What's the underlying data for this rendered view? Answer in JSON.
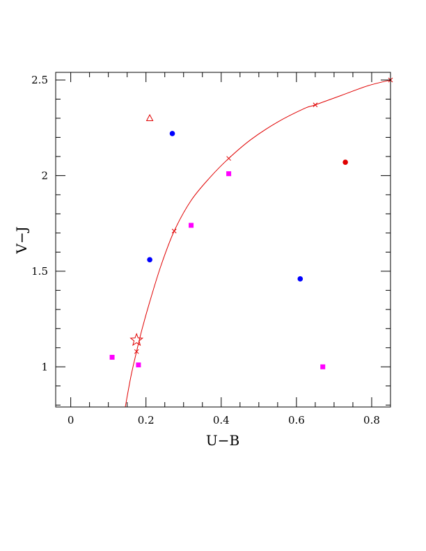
{
  "chart_data": {
    "type": "scatter",
    "title": "",
    "xlabel": "U−B",
    "ylabel": "V−J",
    "xlim": [
      -0.04,
      0.85
    ],
    "ylim": [
      0.79,
      2.54
    ],
    "x_ticks": [
      "0",
      "0.2",
      "0.4",
      "0.6",
      "0.8"
    ],
    "y_ticks": [
      "1",
      "1.5",
      "2",
      "2.5"
    ],
    "grid": false,
    "legend": "none",
    "colors": {
      "red": "#e00000",
      "blue": "#0000ff",
      "magenta": "#ff00ff"
    },
    "curve": {
      "color": "#e00000",
      "x": [
        0.145,
        0.16,
        0.175,
        0.19,
        0.21,
        0.24,
        0.275,
        0.32,
        0.37,
        0.42,
        0.48,
        0.55,
        0.62,
        0.65,
        0.72,
        0.79,
        0.85
      ],
      "y": [
        0.79,
        0.95,
        1.08,
        1.2,
        1.34,
        1.53,
        1.71,
        1.87,
        1.99,
        2.09,
        2.19,
        2.28,
        2.35,
        2.37,
        2.42,
        2.47,
        2.5
      ],
      "markers_x": [
        0.175,
        0.275,
        0.42,
        0.65,
        0.85
      ]
    },
    "series": [
      {
        "marker": "square",
        "color": "#ff00ff",
        "x": [
          0.11,
          0.18,
          0.32,
          0.42,
          0.67
        ],
        "y": [
          1.05,
          1.01,
          1.74,
          2.01,
          1.0
        ]
      },
      {
        "marker": "circle",
        "color": "#0000ff",
        "x": [
          0.21,
          0.27,
          0.61
        ],
        "y": [
          1.56,
          2.22,
          1.46
        ]
      },
      {
        "marker": "circle",
        "color": "#e00000",
        "x": [
          0.73
        ],
        "y": [
          2.07
        ]
      },
      {
        "marker": "triangle",
        "color": "#e00000",
        "x": [
          0.21
        ],
        "y": [
          2.3
        ]
      },
      {
        "marker": "star",
        "color": "#e00000",
        "x": [
          0.175
        ],
        "y": [
          1.14
        ]
      }
    ]
  }
}
